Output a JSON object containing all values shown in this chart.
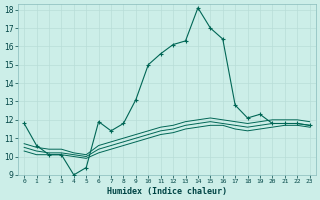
{
  "xlabel": "Humidex (Indice chaleur)",
  "bg_color": "#cceee8",
  "grid_color": "#b8ddd8",
  "line_color": "#006655",
  "xlim": [
    0,
    23
  ],
  "ylim": [
    9,
    18.3
  ],
  "yticks": [
    9,
    10,
    11,
    12,
    13,
    14,
    15,
    16,
    17,
    18
  ],
  "xticks": [
    0,
    1,
    2,
    3,
    4,
    5,
    6,
    7,
    8,
    9,
    10,
    11,
    12,
    13,
    14,
    15,
    16,
    17,
    18,
    19,
    20,
    21,
    22,
    23
  ],
  "main_line_x": [
    0,
    1,
    2,
    3,
    4,
    5,
    6,
    7,
    8,
    9,
    10,
    11,
    12,
    13,
    14,
    15,
    16,
    17,
    18,
    19,
    20,
    21,
    22,
    23
  ],
  "main_line_y": [
    11.8,
    10.6,
    10.1,
    10.1,
    9.0,
    9.4,
    11.9,
    11.4,
    11.8,
    13.1,
    15.0,
    15.6,
    16.1,
    16.3,
    18.1,
    17.0,
    16.4,
    12.8,
    12.1,
    12.3,
    11.8,
    11.8,
    11.8,
    11.7
  ],
  "line2_x": [
    0,
    1,
    2,
    3,
    4,
    5,
    6,
    7,
    8,
    9,
    10,
    11,
    12,
    13,
    14,
    15,
    16,
    17,
    18,
    19,
    20,
    21,
    22,
    23
  ],
  "line2_y": [
    10.3,
    10.1,
    10.1,
    10.1,
    10.0,
    9.9,
    10.2,
    10.4,
    10.6,
    10.8,
    11.0,
    11.2,
    11.3,
    11.5,
    11.6,
    11.7,
    11.7,
    11.5,
    11.4,
    11.5,
    11.6,
    11.7,
    11.7,
    11.6
  ],
  "line3_x": [
    0,
    1,
    2,
    3,
    4,
    5,
    6,
    7,
    8,
    9,
    10,
    11,
    12,
    13,
    14,
    15,
    16,
    17,
    18,
    19,
    20,
    21,
    22,
    23
  ],
  "line3_y": [
    10.5,
    10.3,
    10.2,
    10.2,
    10.1,
    10.0,
    10.4,
    10.6,
    10.8,
    11.0,
    11.2,
    11.4,
    11.5,
    11.7,
    11.8,
    11.9,
    11.8,
    11.7,
    11.6,
    11.7,
    11.8,
    11.8,
    11.8,
    11.7
  ],
  "line4_x": [
    0,
    1,
    2,
    3,
    4,
    5,
    6,
    7,
    8,
    9,
    10,
    11,
    12,
    13,
    14,
    15,
    16,
    17,
    18,
    19,
    20,
    21,
    22,
    23
  ],
  "line4_y": [
    10.7,
    10.5,
    10.4,
    10.4,
    10.2,
    10.1,
    10.6,
    10.8,
    11.0,
    11.2,
    11.4,
    11.6,
    11.7,
    11.9,
    12.0,
    12.1,
    12.0,
    11.9,
    11.8,
    11.9,
    12.0,
    12.0,
    12.0,
    11.9
  ]
}
